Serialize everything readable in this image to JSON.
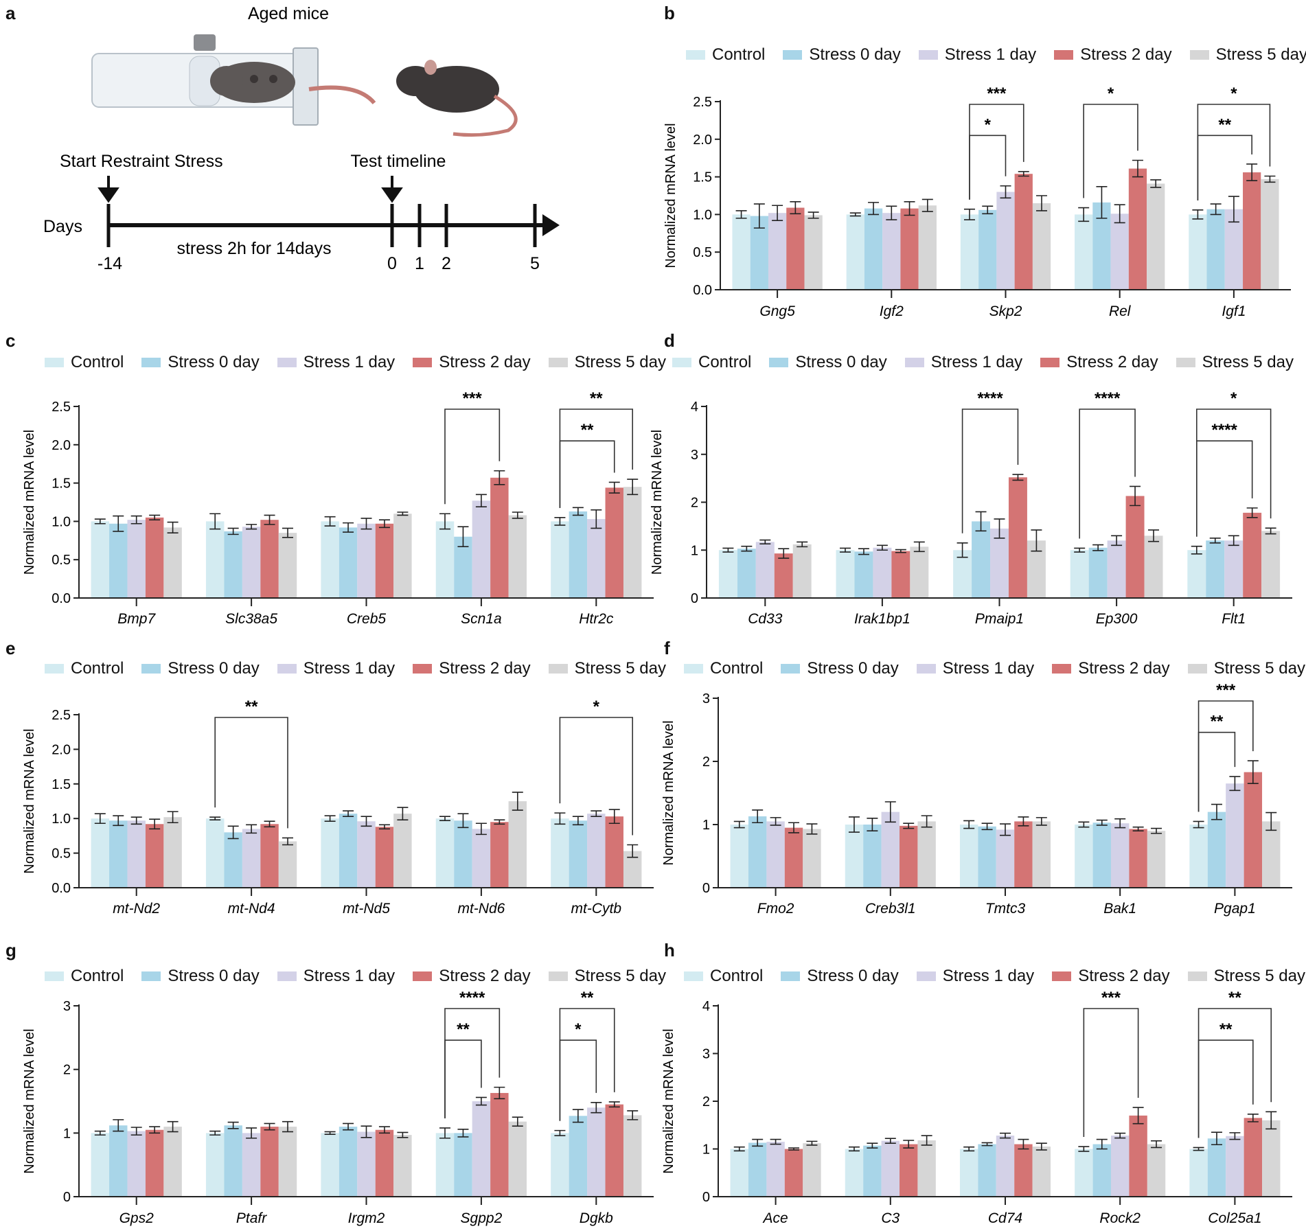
{
  "panel_a": {
    "letter": "a",
    "title": "Aged mice",
    "start_label": "Start Restraint Stress",
    "test_label": "Test timeline",
    "axis_label": "Days",
    "stress_label": "stress 2h for 14days",
    "ticks": [
      "-14",
      "0",
      "1",
      "2",
      "5"
    ]
  },
  "legend": [
    "Control",
    "Stress 0 day",
    "Stress 1 day",
    "Stress 2 day",
    "Stress 5 day"
  ],
  "colors": [
    "#d3ebf1",
    "#a8d5e8",
    "#d3d1e7",
    "#d47474",
    "#d6d6d6"
  ],
  "chart_data": [
    {
      "id": "b",
      "letter": "b",
      "type": "bar",
      "ylabel": "Normalized mRNA level",
      "ylim": [
        0,
        2.5
      ],
      "yticks": [
        "0.0",
        "0.5",
        "1.0",
        "1.5",
        "2.0",
        "2.5"
      ],
      "categories": [
        "Gng5",
        "Igf2",
        "Skp2",
        "Rel",
        "Igf1"
      ],
      "series": [
        {
          "name": "Control",
          "values": [
            1.0,
            1.0,
            1.0,
            1.0,
            1.0
          ],
          "sem": [
            0.05,
            0.02,
            0.07,
            0.09,
            0.06
          ]
        },
        {
          "name": "Stress 0 day",
          "values": [
            0.98,
            1.08,
            1.06,
            1.16,
            1.07
          ],
          "sem": [
            0.16,
            0.08,
            0.05,
            0.21,
            0.07
          ]
        },
        {
          "name": "Stress 1 day",
          "values": [
            1.02,
            1.02,
            1.3,
            1.01,
            1.07
          ],
          "sem": [
            0.1,
            0.09,
            0.08,
            0.12,
            0.17
          ]
        },
        {
          "name": "Stress 2 day",
          "values": [
            1.09,
            1.08,
            1.54,
            1.61,
            1.56
          ],
          "sem": [
            0.08,
            0.09,
            0.03,
            0.11,
            0.11
          ]
        },
        {
          "name": "Stress 5 day",
          "values": [
            0.99,
            1.12,
            1.15,
            1.41,
            1.47
          ],
          "sem": [
            0.04,
            0.08,
            0.1,
            0.05,
            0.04
          ]
        }
      ],
      "significance": [
        {
          "category": "Skp2",
          "from": "Control",
          "to": "Stress 1 day",
          "label": "*",
          "level": "inner"
        },
        {
          "category": "Skp2",
          "from": "Control",
          "to": "Stress 2 day",
          "label": "***",
          "level": "outer"
        },
        {
          "category": "Rel",
          "from": "Control",
          "to": "Stress 2 day",
          "label": "*",
          "level": "outer"
        },
        {
          "category": "Igf1",
          "from": "Control",
          "to": "Stress 2 day",
          "label": "**",
          "level": "inner"
        },
        {
          "category": "Igf1",
          "from": "Control",
          "to": "Stress 5 day",
          "label": "*",
          "level": "outer"
        }
      ]
    },
    {
      "id": "c",
      "letter": "c",
      "type": "bar",
      "ylabel": "Normalized mRNA level",
      "ylim": [
        0,
        2.5
      ],
      "yticks": [
        "0.0",
        "0.5",
        "1.0",
        "1.5",
        "2.0",
        "2.5"
      ],
      "categories": [
        "Bmp7",
        "Slc38a5",
        "Creb5",
        "Scn1a",
        "Htr2c"
      ],
      "series": [
        {
          "name": "Control",
          "values": [
            1.0,
            1.0,
            1.0,
            1.0,
            1.0
          ],
          "sem": [
            0.03,
            0.1,
            0.06,
            0.1,
            0.05
          ]
        },
        {
          "name": "Stress 0 day",
          "values": [
            0.97,
            0.87,
            0.92,
            0.8,
            1.13
          ],
          "sem": [
            0.1,
            0.04,
            0.06,
            0.13,
            0.05
          ]
        },
        {
          "name": "Stress 1 day",
          "values": [
            1.02,
            0.93,
            0.97,
            1.27,
            1.03
          ],
          "sem": [
            0.05,
            0.03,
            0.07,
            0.08,
            0.12
          ]
        },
        {
          "name": "Stress 2 day",
          "values": [
            1.05,
            1.02,
            0.97,
            1.57,
            1.44
          ],
          "sem": [
            0.03,
            0.06,
            0.05,
            0.09,
            0.07
          ]
        },
        {
          "name": "Stress 5 day",
          "values": [
            0.92,
            0.85,
            1.1,
            1.08,
            1.45
          ],
          "sem": [
            0.07,
            0.06,
            0.02,
            0.04,
            0.1
          ]
        }
      ],
      "significance": [
        {
          "category": "Scn1a",
          "from": "Control",
          "to": "Stress 2 day",
          "label": "***",
          "level": "outer"
        },
        {
          "category": "Htr2c",
          "from": "Control",
          "to": "Stress 2 day",
          "label": "**",
          "level": "inner"
        },
        {
          "category": "Htr2c",
          "from": "Control",
          "to": "Stress 5 day",
          "label": "**",
          "level": "outer"
        }
      ]
    },
    {
      "id": "d",
      "letter": "d",
      "type": "bar",
      "ylabel": "Normalized mRNA level",
      "ylim": [
        0,
        4
      ],
      "yticks": [
        "0",
        "1",
        "2",
        "3",
        "4"
      ],
      "categories": [
        "Cd33",
        "Irak1bp1",
        "Pmaip1",
        "Ep300",
        "Flt1"
      ],
      "series": [
        {
          "name": "Control",
          "values": [
            1.0,
            1.0,
            1.0,
            1.0,
            1.0
          ],
          "sem": [
            0.04,
            0.04,
            0.15,
            0.04,
            0.08
          ]
        },
        {
          "name": "Stress 0 day",
          "values": [
            1.03,
            0.97,
            1.6,
            1.05,
            1.2
          ],
          "sem": [
            0.05,
            0.06,
            0.2,
            0.06,
            0.05
          ]
        },
        {
          "name": "Stress 1 day",
          "values": [
            1.17,
            1.05,
            1.45,
            1.2,
            1.2
          ],
          "sem": [
            0.04,
            0.05,
            0.2,
            0.1,
            0.1
          ]
        },
        {
          "name": "Stress 2 day",
          "values": [
            0.93,
            0.98,
            2.52,
            2.13,
            1.78
          ],
          "sem": [
            0.1,
            0.03,
            0.06,
            0.2,
            0.1
          ]
        },
        {
          "name": "Stress 5 day",
          "values": [
            1.12,
            1.07,
            1.2,
            1.3,
            1.4
          ],
          "sem": [
            0.05,
            0.1,
            0.22,
            0.12,
            0.06
          ]
        }
      ],
      "significance": [
        {
          "category": "Pmaip1",
          "from": "Control",
          "to": "Stress 2 day",
          "label": "****",
          "level": "outer"
        },
        {
          "category": "Ep300",
          "from": "Control",
          "to": "Stress 2 day",
          "label": "****",
          "level": "outer"
        },
        {
          "category": "Flt1",
          "from": "Control",
          "to": "Stress 2 day",
          "label": "****",
          "level": "inner"
        },
        {
          "category": "Flt1",
          "from": "Control",
          "to": "Stress 5 day",
          "label": "*",
          "level": "outer"
        }
      ]
    },
    {
      "id": "e",
      "letter": "e",
      "type": "bar",
      "ylabel": "Normalized mRNA level",
      "ylim": [
        0,
        2.5
      ],
      "yticks": [
        "0.0",
        "0.5",
        "1.0",
        "1.5",
        "2.0",
        "2.5"
      ],
      "categories": [
        "mt-Nd2",
        "mt-Nd4",
        "mt-Nd5",
        "mt-Nd6",
        "mt-Cytb"
      ],
      "series": [
        {
          "name": "Control",
          "values": [
            1.0,
            1.0,
            1.0,
            1.0,
            1.0
          ],
          "sem": [
            0.07,
            0.02,
            0.04,
            0.03,
            0.08
          ]
        },
        {
          "name": "Stress 0 day",
          "values": [
            0.97,
            0.8,
            1.07,
            0.97,
            0.97
          ],
          "sem": [
            0.07,
            0.09,
            0.04,
            0.1,
            0.06
          ]
        },
        {
          "name": "Stress 1 day",
          "values": [
            0.97,
            0.85,
            0.96,
            0.85,
            1.07
          ],
          "sem": [
            0.05,
            0.06,
            0.07,
            0.08,
            0.04
          ]
        },
        {
          "name": "Stress 2 day",
          "values": [
            0.92,
            0.92,
            0.88,
            0.95,
            1.03
          ],
          "sem": [
            0.07,
            0.04,
            0.03,
            0.03,
            0.1
          ]
        },
        {
          "name": "Stress 5 day",
          "values": [
            1.02,
            0.67,
            1.07,
            1.25,
            0.53
          ],
          "sem": [
            0.08,
            0.05,
            0.09,
            0.13,
            0.09
          ]
        }
      ],
      "significance": [
        {
          "category": "mt-Nd4",
          "from": "Control",
          "to": "Stress 5 day",
          "label": "**",
          "level": "outer"
        },
        {
          "category": "mt-Cytb",
          "from": "Control",
          "to": "Stress 5 day",
          "label": "*",
          "level": "outer"
        }
      ]
    },
    {
      "id": "f",
      "letter": "f",
      "type": "bar",
      "ylabel": "Normalized mRNA level",
      "ylim": [
        0,
        3
      ],
      "yticks": [
        "0",
        "1",
        "2",
        "3"
      ],
      "categories": [
        "Fmo2",
        "Creb3l1",
        "Tmtc3",
        "Bak1",
        "Pgap1"
      ],
      "series": [
        {
          "name": "Control",
          "values": [
            1.0,
            1.0,
            1.0,
            1.0,
            1.0
          ],
          "sem": [
            0.05,
            0.12,
            0.06,
            0.04,
            0.05
          ]
        },
        {
          "name": "Stress 0 day",
          "values": [
            1.13,
            1.0,
            0.97,
            1.03,
            1.2
          ],
          "sem": [
            0.1,
            0.1,
            0.05,
            0.04,
            0.12
          ]
        },
        {
          "name": "Stress 1 day",
          "values": [
            1.05,
            1.2,
            0.92,
            1.02,
            1.65
          ],
          "sem": [
            0.06,
            0.16,
            0.09,
            0.07,
            0.11
          ]
        },
        {
          "name": "Stress 2 day",
          "values": [
            0.95,
            0.98,
            1.05,
            0.93,
            1.83
          ],
          "sem": [
            0.08,
            0.04,
            0.07,
            0.03,
            0.18
          ]
        },
        {
          "name": "Stress 5 day",
          "values": [
            0.93,
            1.05,
            1.05,
            0.9,
            1.05
          ],
          "sem": [
            0.08,
            0.09,
            0.06,
            0.04,
            0.14
          ]
        }
      ],
      "significance": [
        {
          "category": "Pgap1",
          "from": "Control",
          "to": "Stress 1 day",
          "label": "**",
          "level": "inner"
        },
        {
          "category": "Pgap1",
          "from": "Control",
          "to": "Stress 2 day",
          "label": "***",
          "level": "outer"
        }
      ]
    },
    {
      "id": "g",
      "letter": "g",
      "type": "bar",
      "ylabel": "Normalized mRNA level",
      "ylim": [
        0,
        3
      ],
      "yticks": [
        "0",
        "1",
        "2",
        "3"
      ],
      "categories": [
        "Gps2",
        "Ptafr",
        "Irgm2",
        "Sgpp2",
        "Dgkb"
      ],
      "series": [
        {
          "name": "Control",
          "values": [
            1.0,
            1.0,
            1.0,
            1.0,
            1.0
          ],
          "sem": [
            0.03,
            0.03,
            0.02,
            0.08,
            0.04
          ]
        },
        {
          "name": "Stress 0 day",
          "values": [
            1.12,
            1.12,
            1.1,
            1.0,
            1.27
          ],
          "sem": [
            0.09,
            0.05,
            0.05,
            0.06,
            0.1
          ]
        },
        {
          "name": "Stress 1 day",
          "values": [
            1.03,
            1.0,
            1.02,
            1.5,
            1.4
          ],
          "sem": [
            0.06,
            0.08,
            0.09,
            0.06,
            0.08
          ]
        },
        {
          "name": "Stress 2 day",
          "values": [
            1.05,
            1.1,
            1.05,
            1.63,
            1.45
          ],
          "sem": [
            0.05,
            0.05,
            0.05,
            0.09,
            0.04
          ]
        },
        {
          "name": "Stress 5 day",
          "values": [
            1.1,
            1.1,
            0.97,
            1.18,
            1.28
          ],
          "sem": [
            0.08,
            0.08,
            0.04,
            0.07,
            0.07
          ]
        }
      ],
      "significance": [
        {
          "category": "Sgpp2",
          "from": "Control",
          "to": "Stress 1 day",
          "label": "**",
          "level": "inner"
        },
        {
          "category": "Sgpp2",
          "from": "Control",
          "to": "Stress 2 day",
          "label": "****",
          "level": "outer"
        },
        {
          "category": "Dgkb",
          "from": "Control",
          "to": "Stress 1 day",
          "label": "*",
          "level": "inner"
        },
        {
          "category": "Dgkb",
          "from": "Control",
          "to": "Stress 2 day",
          "label": "**",
          "level": "outer"
        }
      ]
    },
    {
      "id": "h",
      "letter": "h",
      "type": "bar",
      "ylabel": "Normalized mRNA level",
      "ylim": [
        0,
        4
      ],
      "yticks": [
        "0",
        "1",
        "2",
        "3",
        "4"
      ],
      "categories": [
        "Ace",
        "C3",
        "Cd74",
        "Rock2",
        "Col25a1"
      ],
      "series": [
        {
          "name": "Control",
          "values": [
            1.0,
            1.0,
            1.0,
            1.0,
            1.0
          ],
          "sem": [
            0.04,
            0.04,
            0.04,
            0.05,
            0.03
          ]
        },
        {
          "name": "Stress 0 day",
          "values": [
            1.13,
            1.07,
            1.1,
            1.1,
            1.22
          ],
          "sem": [
            0.07,
            0.05,
            0.03,
            0.1,
            0.13
          ]
        },
        {
          "name": "Stress 1 day",
          "values": [
            1.15,
            1.17,
            1.28,
            1.28,
            1.27
          ],
          "sem": [
            0.05,
            0.05,
            0.05,
            0.05,
            0.07
          ]
        },
        {
          "name": "Stress 2 day",
          "values": [
            1.0,
            1.1,
            1.1,
            1.7,
            1.65
          ],
          "sem": [
            0.02,
            0.08,
            0.1,
            0.17,
            0.08
          ]
        },
        {
          "name": "Stress 5 day",
          "values": [
            1.12,
            1.18,
            1.05,
            1.1,
            1.6
          ],
          "sem": [
            0.04,
            0.1,
            0.07,
            0.07,
            0.18
          ]
        }
      ],
      "significance": [
        {
          "category": "Rock2",
          "from": "Control",
          "to": "Stress 2 day",
          "label": "***",
          "level": "outer"
        },
        {
          "category": "Col25a1",
          "from": "Control",
          "to": "Stress 2 day",
          "label": "**",
          "level": "inner"
        },
        {
          "category": "Col25a1",
          "from": "Control",
          "to": "Stress 5 day",
          "label": "**",
          "level": "outer"
        }
      ]
    }
  ]
}
